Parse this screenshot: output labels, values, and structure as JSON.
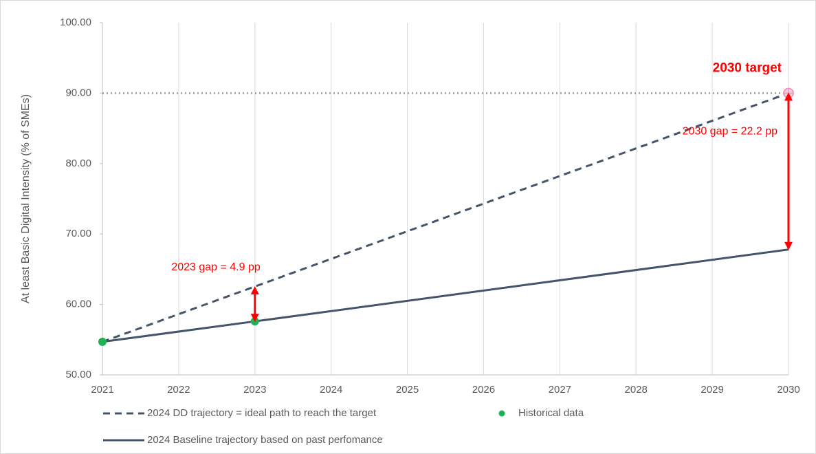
{
  "chart_data": {
    "type": "line",
    "y_label": "At least Basic Digital Intensity (% of SMEs)",
    "xlim": [
      2021,
      2030
    ],
    "xticks": [
      2021,
      2022,
      2023,
      2024,
      2025,
      2026,
      2027,
      2028,
      2029,
      2030
    ],
    "ylim": [
      50,
      100
    ],
    "yticks": [
      {
        "value": 50,
        "label": "50.00"
      },
      {
        "value": 60,
        "label": "60.00"
      },
      {
        "value": 70,
        "label": "70.00"
      },
      {
        "value": 80,
        "label": "80.00"
      },
      {
        "value": 90,
        "label": "90.00"
      },
      {
        "value": 100,
        "label": "100.00"
      }
    ],
    "grid": "x",
    "series": [
      {
        "name": "2024 DD trajectory = ideal path to reach the target",
        "color": "#44546a",
        "style": "dashed",
        "x": [
          2021,
          2030
        ],
        "values": [
          54.7,
          90
        ]
      },
      {
        "name": "Historical data",
        "color": "#1fb156",
        "style": "markers",
        "x": [
          2021,
          2023
        ],
        "values": [
          54.7,
          57.6
        ]
      },
      {
        "name": "2024 Baseline trajectory based on past perfomance",
        "color": "#44546a",
        "style": "solid",
        "x": [
          2021,
          2023,
          2030
        ],
        "values": [
          54.7,
          57.6,
          67.8
        ]
      }
    ],
    "target": {
      "text": "2030 target",
      "x": 2030,
      "y": 90,
      "color": "#ff0000"
    },
    "gaps": [
      {
        "text": "2023 gap = 4.9 pp",
        "x": 2023,
        "y_from": 57.6,
        "y_to": 62.5,
        "color": "#ff0000"
      },
      {
        "text": "2030 gap = 22.2 pp",
        "x": 2030,
        "y_from": 67.8,
        "y_to": 90,
        "color": "#ff0000"
      }
    ]
  }
}
